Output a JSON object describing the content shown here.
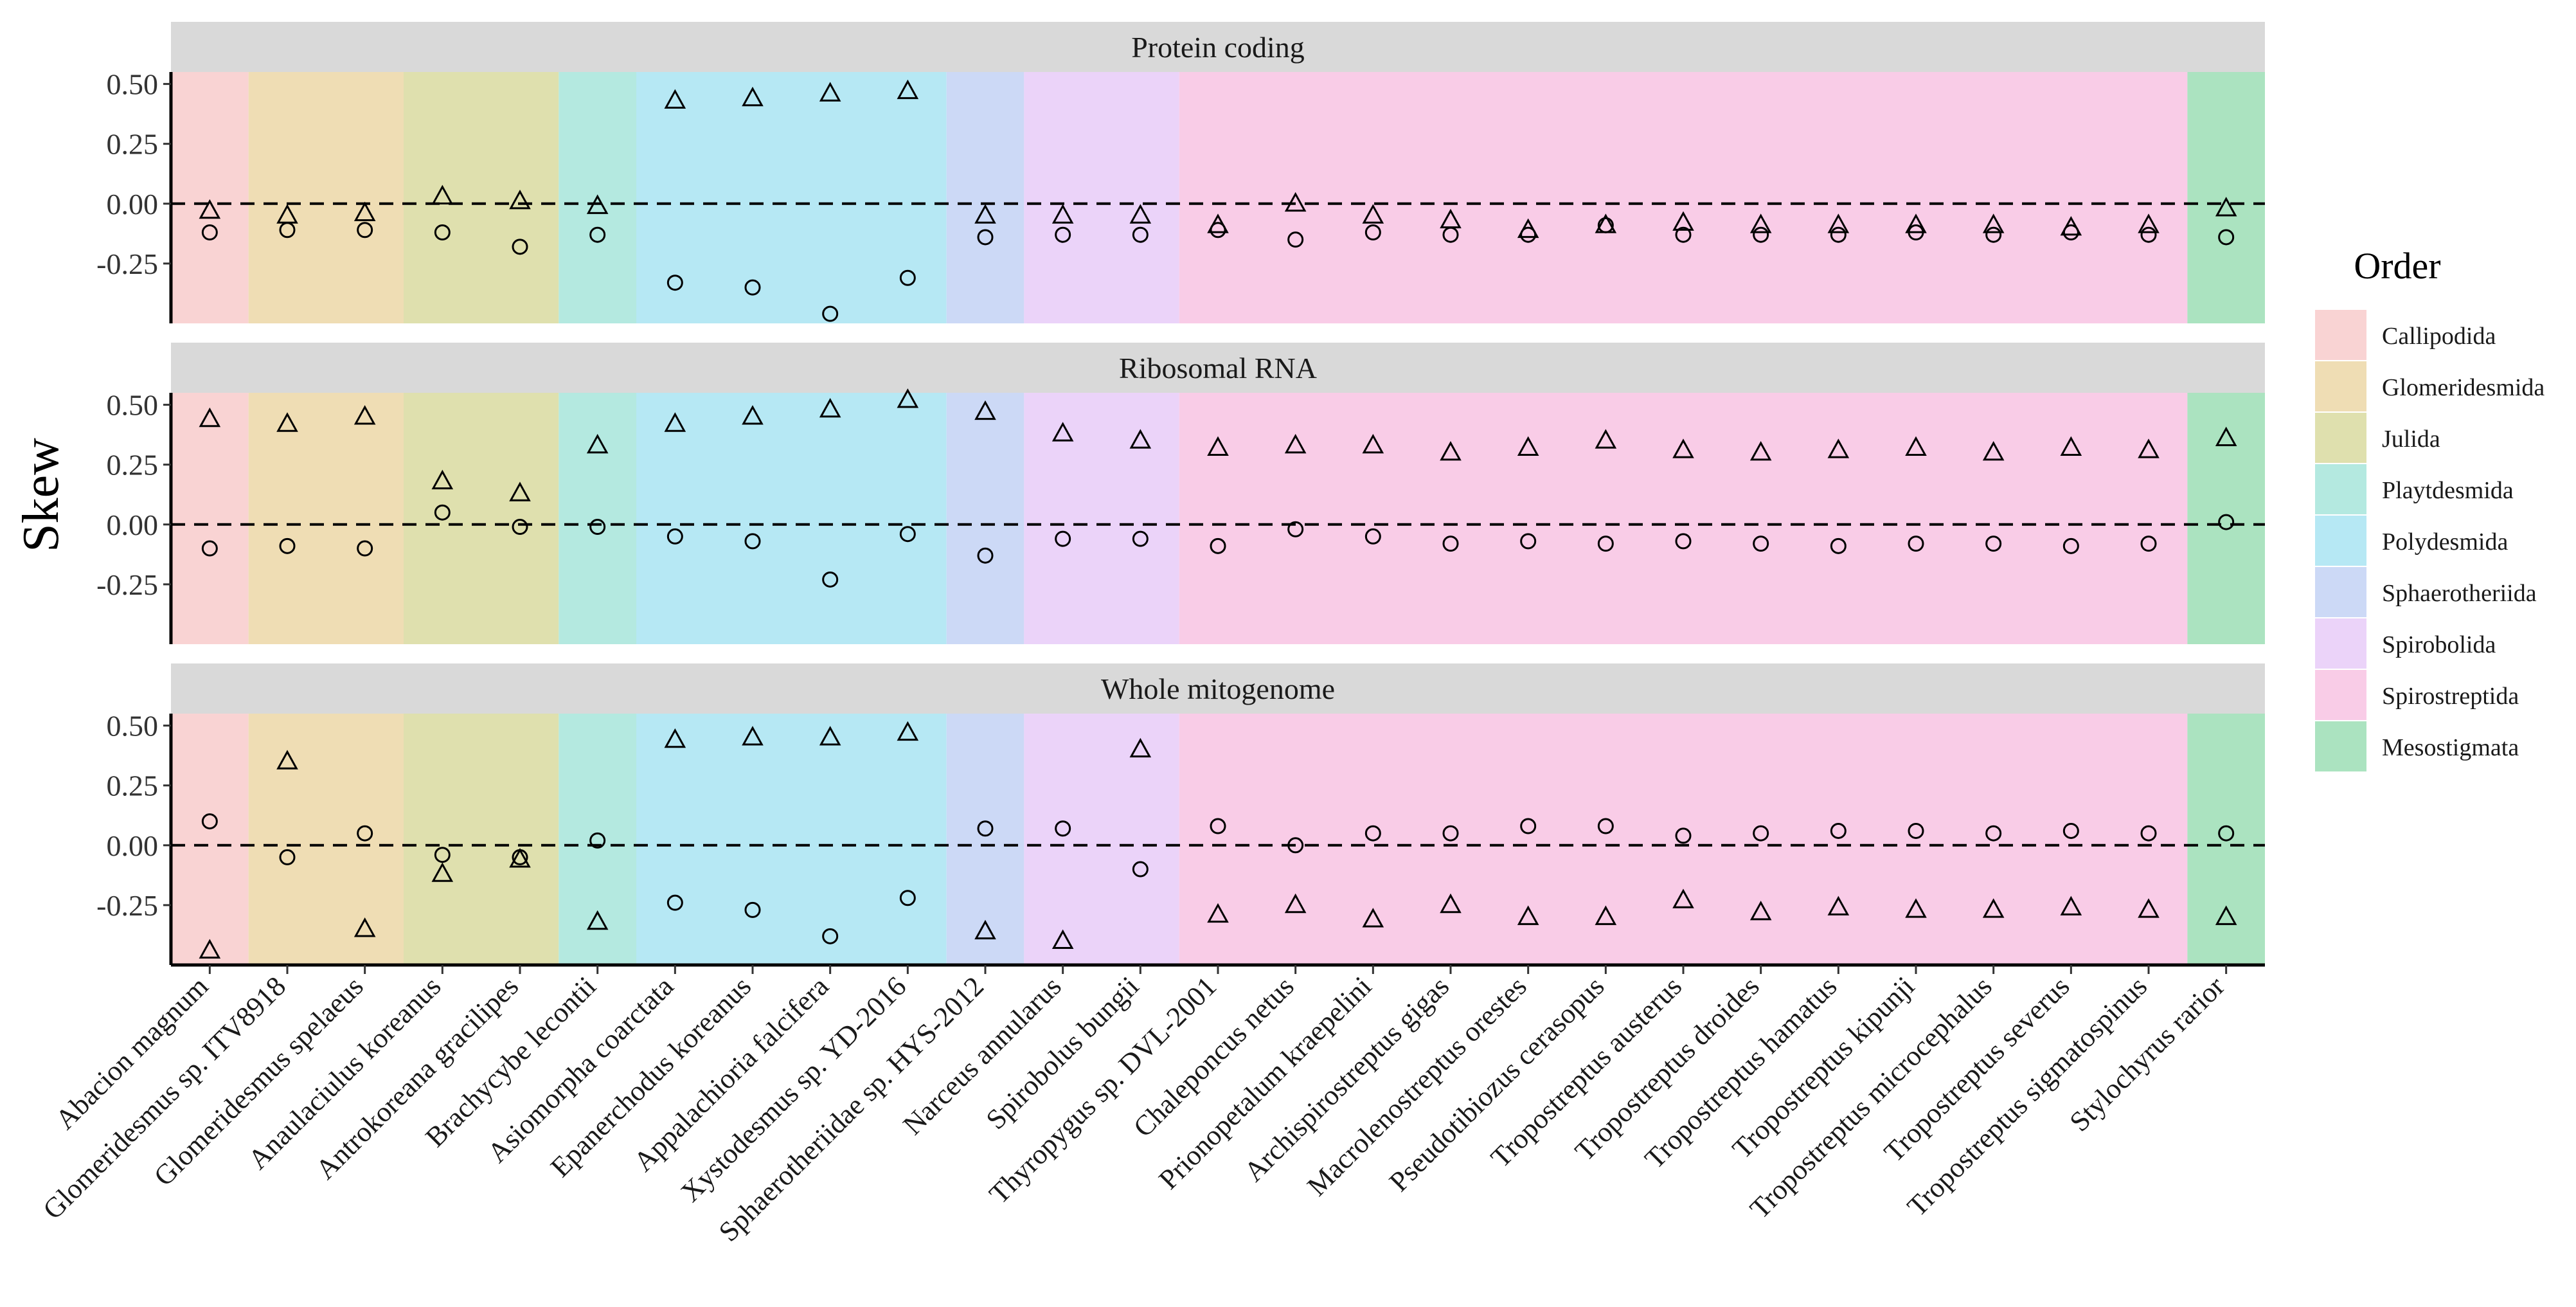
{
  "chart_data": {
    "type": "scatter",
    "y_axis_title": "Skew",
    "legend_title": "Order",
    "ylim": [
      -0.5,
      0.55
    ],
    "y_ticks": [
      {
        "value": 0.5,
        "label": "0.50"
      },
      {
        "value": 0.25,
        "label": "0.25"
      },
      {
        "value": 0.0,
        "label": "0.00"
      },
      {
        "value": -0.25,
        "label": "-0.25"
      }
    ],
    "reference_line": 0,
    "species": [
      "Abacion magnum",
      "Glomeridesmus sp. ITV8918",
      "Glomeridesmus spelaeus",
      "Anaulaciulus koreanus",
      "Antrokoreana gracilipes",
      "Brachycybe lecontii",
      "Asiomorpha coarctata",
      "Epanerchodus koreanus",
      "Appalachioria falcifera",
      "Xystodesmus sp. YD-2016",
      "Sphaerotheriidae sp. HYS-2012",
      "Narceus annularus",
      "Spirobolus bungii",
      "Thyropygus sp. DVL-2001",
      "Chaleponcus netus",
      "Prionopetalum kraepelini",
      "Archispirostreptus gigas",
      "Macrolenostreptus orestes",
      "Pseudotibiozus cerasopus",
      "Tropostreptus austerus",
      "Tropostreptus droides",
      "Tropostreptus hamatus",
      "Tropostreptus kipunji",
      "Tropostreptus microcephalus",
      "Tropostreptus severus",
      "Tropostreptus sigmatospinus",
      "Stylochyrus rarior"
    ],
    "orders": [
      {
        "name": "Callipodida",
        "color": "#F9D3D3",
        "start": 0,
        "end": 0
      },
      {
        "name": "Glomeridesmida",
        "color": "#EFDDB4",
        "start": 1,
        "end": 2
      },
      {
        "name": "Julida",
        "color": "#DFE0AE",
        "start": 3,
        "end": 4
      },
      {
        "name": "Playtdesmida",
        "color": "#B4E9E0",
        "start": 5,
        "end": 5
      },
      {
        "name": "Polydesmida",
        "color": "#B6E8F4",
        "start": 6,
        "end": 9
      },
      {
        "name": "Sphaerotheriida",
        "color": "#CCD9F6",
        "start": 10,
        "end": 10
      },
      {
        "name": "Spirobolida",
        "color": "#EBD3F9",
        "start": 11,
        "end": 12
      },
      {
        "name": "Spirostreptida",
        "color": "#F9CCE7",
        "start": 13,
        "end": 25
      },
      {
        "name": "Mesostigmata",
        "color": "#ABE3C0",
        "start": 26,
        "end": 26
      }
    ],
    "panels": [
      {
        "title": "Protein coding",
        "triangle": [
          -0.03,
          -0.05,
          -0.04,
          0.03,
          0.01,
          -0.01,
          0.43,
          0.44,
          0.46,
          0.47,
          -0.05,
          -0.05,
          -0.05,
          -0.09,
          0.0,
          -0.05,
          -0.07,
          -0.11,
          -0.09,
          -0.08,
          -0.09,
          -0.09,
          -0.09,
          -0.09,
          -0.1,
          -0.09,
          -0.02
        ],
        "circle": [
          -0.12,
          -0.11,
          -0.11,
          -0.12,
          -0.18,
          -0.13,
          -0.33,
          -0.35,
          -0.46,
          -0.31,
          -0.14,
          -0.13,
          -0.13,
          -0.11,
          -0.15,
          -0.12,
          -0.13,
          -0.13,
          -0.09,
          -0.13,
          -0.13,
          -0.13,
          -0.12,
          -0.13,
          -0.12,
          -0.13,
          -0.14
        ]
      },
      {
        "title": "Ribosomal RNA",
        "triangle": [
          0.44,
          0.42,
          0.45,
          0.18,
          0.13,
          0.33,
          0.42,
          0.45,
          0.48,
          0.52,
          0.47,
          0.38,
          0.35,
          0.32,
          0.33,
          0.33,
          0.3,
          0.32,
          0.35,
          0.31,
          0.3,
          0.31,
          0.32,
          0.3,
          0.32,
          0.31,
          0.36
        ],
        "circle": [
          -0.1,
          -0.09,
          -0.1,
          0.05,
          -0.01,
          -0.01,
          -0.05,
          -0.07,
          -0.23,
          -0.04,
          -0.13,
          -0.06,
          -0.06,
          -0.09,
          -0.02,
          -0.05,
          -0.08,
          -0.07,
          -0.08,
          -0.07,
          -0.08,
          -0.09,
          -0.08,
          -0.08,
          -0.09,
          -0.08,
          0.01
        ]
      },
      {
        "title": "Whole mitogenome",
        "triangle": [
          -0.44,
          0.35,
          -0.35,
          -0.12,
          -0.06,
          -0.32,
          0.44,
          0.45,
          0.45,
          0.47,
          -0.36,
          -0.4,
          0.4,
          -0.29,
          -0.25,
          -0.31,
          -0.25,
          -0.3,
          -0.3,
          -0.23,
          -0.28,
          -0.26,
          -0.27,
          -0.27,
          -0.26,
          -0.27,
          -0.3
        ],
        "circle": [
          0.1,
          -0.05,
          0.05,
          -0.04,
          -0.05,
          0.02,
          -0.24,
          -0.27,
          -0.38,
          -0.22,
          0.07,
          0.07,
          -0.1,
          0.08,
          0.0,
          0.05,
          0.05,
          0.08,
          0.08,
          0.04,
          0.05,
          0.06,
          0.06,
          0.05,
          0.06,
          0.05,
          0.05
        ]
      }
    ]
  }
}
